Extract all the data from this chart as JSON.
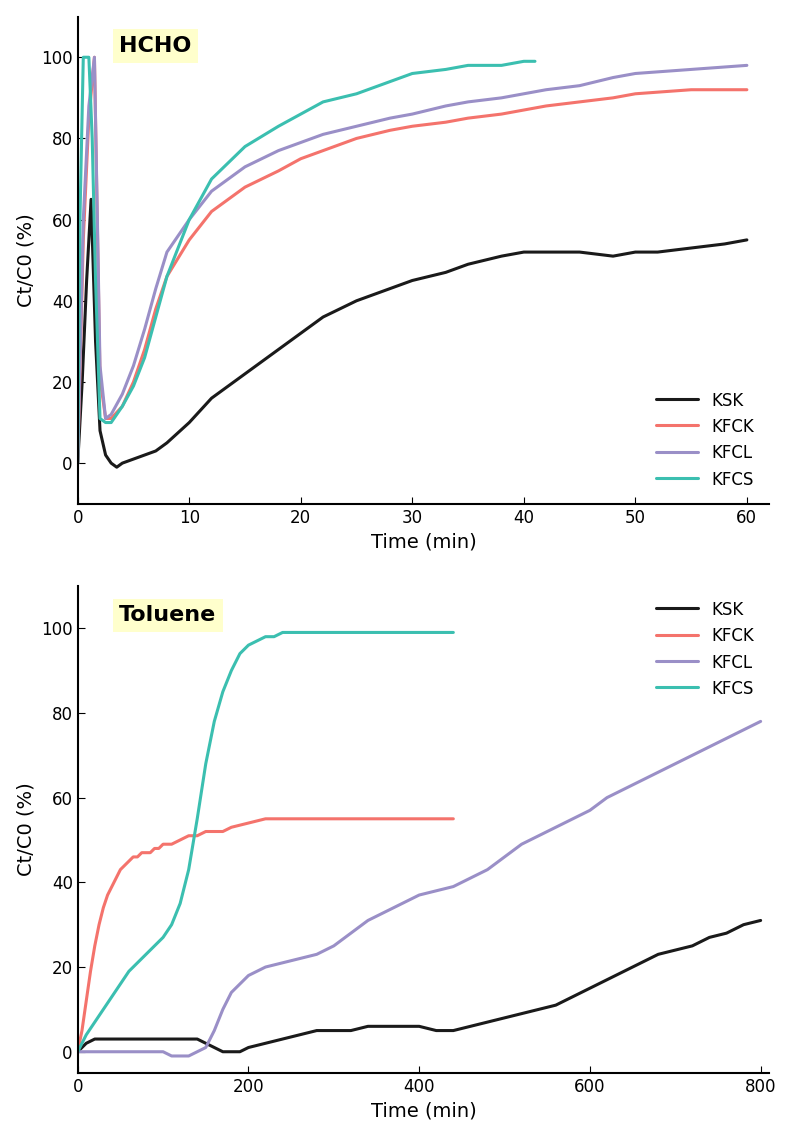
{
  "fig_width": 7.94,
  "fig_height": 11.37,
  "background_color": "#ffffff",
  "subplot1": {
    "title": "HCHO",
    "title_bg": "#ffffcc",
    "xlabel": "Time (min)",
    "ylabel": "Ct/C0 (%)",
    "xlim": [
      0,
      62
    ],
    "ylim": [
      -10,
      110
    ],
    "xticks": [
      0,
      10,
      20,
      30,
      40,
      50,
      60
    ],
    "yticks": [
      0,
      20,
      40,
      60,
      80,
      100
    ],
    "series": {
      "KSK": {
        "color": "#1a1a1a",
        "x": [
          0,
          0.4,
          0.8,
          1.2,
          1.6,
          2.0,
          2.5,
          3.0,
          3.5,
          4.0,
          5.0,
          6.0,
          7.0,
          8.0,
          10.0,
          12.0,
          15.0,
          18.0,
          20.0,
          22.0,
          25.0,
          28.0,
          30.0,
          33.0,
          35.0,
          38.0,
          40.0,
          42.0,
          45.0,
          48.0,
          50.0,
          52.0,
          55.0,
          58.0,
          60.0
        ],
        "y": [
          0,
          20,
          45,
          65,
          30,
          8,
          2,
          0,
          -1,
          0,
          1,
          2,
          3,
          5,
          10,
          16,
          22,
          28,
          32,
          36,
          40,
          43,
          45,
          47,
          49,
          51,
          52,
          52,
          52,
          51,
          52,
          52,
          53,
          54,
          55
        ]
      },
      "KFCK": {
        "color": "#f4736c",
        "x": [
          0,
          0.5,
          1.0,
          1.5,
          2.0,
          2.5,
          3.0,
          4.0,
          5.0,
          6.0,
          7.0,
          8.0,
          10.0,
          12.0,
          15.0,
          18.0,
          20.0,
          22.0,
          25.0,
          28.0,
          30.0,
          33.0,
          35.0,
          38.0,
          40.0,
          42.0,
          45.0,
          48.0,
          50.0,
          55.0,
          60.0
        ],
        "y": [
          0,
          55,
          85,
          100,
          21,
          11,
          11,
          14,
          20,
          28,
          38,
          46,
          55,
          62,
          68,
          72,
          75,
          77,
          80,
          82,
          83,
          84,
          85,
          86,
          87,
          88,
          89,
          90,
          91,
          92,
          92
        ]
      },
      "KFCL": {
        "color": "#9a8fc7",
        "x": [
          0,
          0.5,
          1.0,
          1.5,
          2.0,
          2.5,
          3.0,
          4.0,
          5.0,
          6.0,
          7.0,
          8.0,
          10.0,
          12.0,
          15.0,
          18.0,
          20.0,
          22.0,
          25.0,
          28.0,
          30.0,
          33.0,
          35.0,
          38.0,
          40.0,
          42.0,
          45.0,
          48.0,
          50.0,
          55.0,
          60.0
        ],
        "y": [
          0,
          60,
          88,
          100,
          24,
          11,
          12,
          17,
          24,
          33,
          43,
          52,
          60,
          67,
          73,
          77,
          79,
          81,
          83,
          85,
          86,
          88,
          89,
          90,
          91,
          92,
          93,
          95,
          96,
          97,
          98
        ]
      },
      "KFCS": {
        "color": "#3bbfb0",
        "x": [
          0,
          0.2,
          0.5,
          0.8,
          1.0,
          1.3,
          1.6,
          2.0,
          2.5,
          3.0,
          4.0,
          5.0,
          6.0,
          7.0,
          8.0,
          10.0,
          12.0,
          15.0,
          18.0,
          20.0,
          22.0,
          25.0,
          28.0,
          30.0,
          33.0,
          35.0,
          38.0,
          40.0,
          41.0
        ],
        "y": [
          0,
          60,
          100,
          100,
          100,
          80,
          45,
          11,
          10,
          10,
          14,
          19,
          26,
          36,
          46,
          60,
          70,
          78,
          83,
          86,
          89,
          91,
          94,
          96,
          97,
          98,
          98,
          99,
          99
        ]
      }
    }
  },
  "subplot2": {
    "title": "Toluene",
    "title_bg": "#ffffcc",
    "xlabel": "Time (min)",
    "ylabel": "Ct/C0 (%)",
    "xlim": [
      0,
      810
    ],
    "ylim": [
      -5,
      110
    ],
    "xticks": [
      0,
      200,
      400,
      600,
      800
    ],
    "yticks": [
      0,
      20,
      40,
      60,
      80,
      100
    ],
    "series": {
      "KSK": {
        "color": "#1a1a1a",
        "x": [
          0,
          10,
          20,
          30,
          40,
          50,
          60,
          70,
          80,
          90,
          100,
          110,
          120,
          130,
          140,
          150,
          160,
          170,
          180,
          190,
          200,
          220,
          240,
          260,
          280,
          300,
          320,
          340,
          360,
          380,
          400,
          420,
          440,
          460,
          480,
          500,
          520,
          540,
          560,
          580,
          600,
          620,
          640,
          660,
          680,
          700,
          720,
          740,
          760,
          780,
          800
        ],
        "y": [
          0,
          2,
          3,
          3,
          3,
          3,
          3,
          3,
          3,
          3,
          3,
          3,
          3,
          3,
          3,
          2,
          1,
          0,
          0,
          0,
          1,
          2,
          3,
          4,
          5,
          5,
          5,
          6,
          6,
          6,
          6,
          5,
          5,
          6,
          7,
          8,
          9,
          10,
          11,
          13,
          15,
          17,
          19,
          21,
          23,
          24,
          25,
          27,
          28,
          30,
          31
        ]
      },
      "KFCK": {
        "color": "#f4736c",
        "x": [
          0,
          5,
          10,
          15,
          20,
          25,
          30,
          35,
          40,
          45,
          50,
          55,
          60,
          65,
          70,
          75,
          80,
          85,
          90,
          95,
          100,
          110,
          120,
          130,
          140,
          150,
          160,
          170,
          180,
          200,
          220,
          240,
          260,
          280,
          300,
          340,
          380,
          420,
          440
        ],
        "y": [
          0,
          5,
          12,
          19,
          25,
          30,
          34,
          37,
          39,
          41,
          43,
          44,
          45,
          46,
          46,
          47,
          47,
          47,
          48,
          48,
          49,
          49,
          50,
          51,
          51,
          52,
          52,
          52,
          53,
          54,
          55,
          55,
          55,
          55,
          55,
          55,
          55,
          55,
          55
        ]
      },
      "KFCL": {
        "color": "#9a8fc7",
        "x": [
          0,
          20,
          40,
          60,
          80,
          100,
          110,
          120,
          130,
          140,
          150,
          160,
          170,
          180,
          200,
          220,
          240,
          260,
          280,
          300,
          320,
          340,
          360,
          380,
          400,
          420,
          440,
          460,
          480,
          500,
          520,
          540,
          560,
          580,
          600,
          620,
          640,
          660,
          680,
          700,
          720,
          740,
          760,
          780,
          800
        ],
        "y": [
          0,
          0,
          0,
          0,
          0,
          0,
          -1,
          -1,
          -1,
          0,
          1,
          5,
          10,
          14,
          18,
          20,
          21,
          22,
          23,
          25,
          28,
          31,
          33,
          35,
          37,
          38,
          39,
          41,
          43,
          46,
          49,
          51,
          53,
          55,
          57,
          60,
          62,
          64,
          66,
          68,
          70,
          72,
          74,
          76,
          78
        ]
      },
      "KFCS": {
        "color": "#3bbfb0",
        "x": [
          0,
          5,
          10,
          20,
          30,
          40,
          50,
          60,
          70,
          80,
          90,
          100,
          110,
          120,
          130,
          140,
          150,
          160,
          170,
          180,
          190,
          200,
          210,
          220,
          230,
          240,
          250,
          260,
          270,
          280,
          290,
          300,
          310,
          320,
          330,
          340,
          350,
          360,
          370,
          380,
          390,
          400,
          410,
          420,
          430,
          440
        ],
        "y": [
          0,
          2,
          4,
          7,
          10,
          13,
          16,
          19,
          21,
          23,
          25,
          27,
          30,
          35,
          43,
          55,
          68,
          78,
          85,
          90,
          94,
          96,
          97,
          98,
          98,
          99,
          99,
          99,
          99,
          99,
          99,
          99,
          99,
          99,
          99,
          99,
          99,
          99,
          99,
          99,
          99,
          99,
          99,
          99,
          99,
          99
        ]
      }
    }
  },
  "linewidth": 2.2,
  "legend_fontsize": 12,
  "label_fontsize": 14,
  "tick_fontsize": 12,
  "title_fontsize": 16
}
